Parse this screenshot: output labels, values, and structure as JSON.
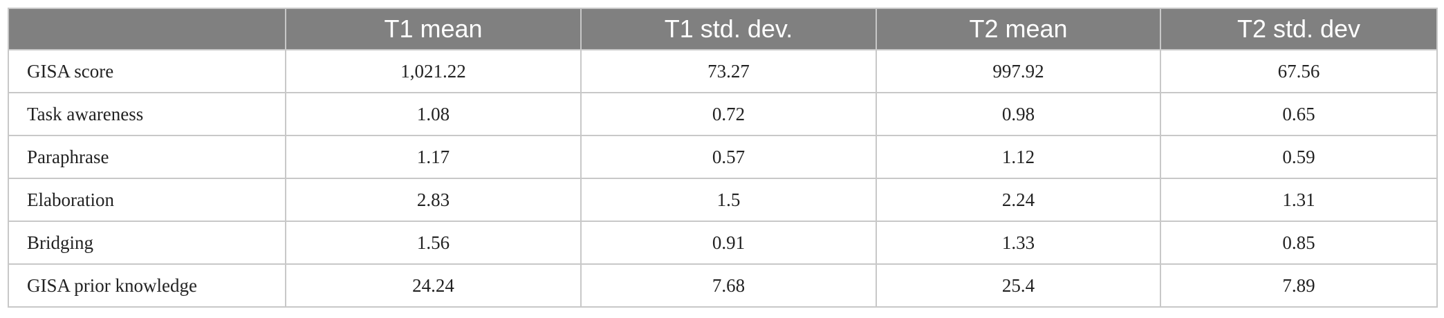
{
  "table": {
    "headers": [
      "",
      "T1 mean",
      "T1 std. dev.",
      "T2 mean",
      "T2 std. dev"
    ],
    "rows": [
      {
        "label": "GISA score",
        "t1_mean": "1,021.22",
        "t1_sd": "73.27",
        "t2_mean": "997.92",
        "t2_sd": "67.56"
      },
      {
        "label": "Task awareness",
        "t1_mean": "1.08",
        "t1_sd": "0.72",
        "t2_mean": "0.98",
        "t2_sd": "0.65"
      },
      {
        "label": "Paraphrase",
        "t1_mean": "1.17",
        "t1_sd": "0.57",
        "t2_mean": "1.12",
        "t2_sd": "0.59"
      },
      {
        "label": "Elaboration",
        "t1_mean": "2.83",
        "t1_sd": "1.5",
        "t2_mean": "2.24",
        "t2_sd": "1.31"
      },
      {
        "label": "Bridging",
        "t1_mean": "1.56",
        "t1_sd": "0.91",
        "t2_mean": "1.33",
        "t2_sd": "0.85"
      },
      {
        "label": "GISA prior knowledge",
        "t1_mean": "24.24",
        "t1_sd": "7.68",
        "t2_mean": "25.4",
        "t2_sd": "7.89"
      }
    ],
    "colors": {
      "header_bg": "#808080",
      "header_text": "#ffffff",
      "border": "#c8c8c8"
    }
  }
}
